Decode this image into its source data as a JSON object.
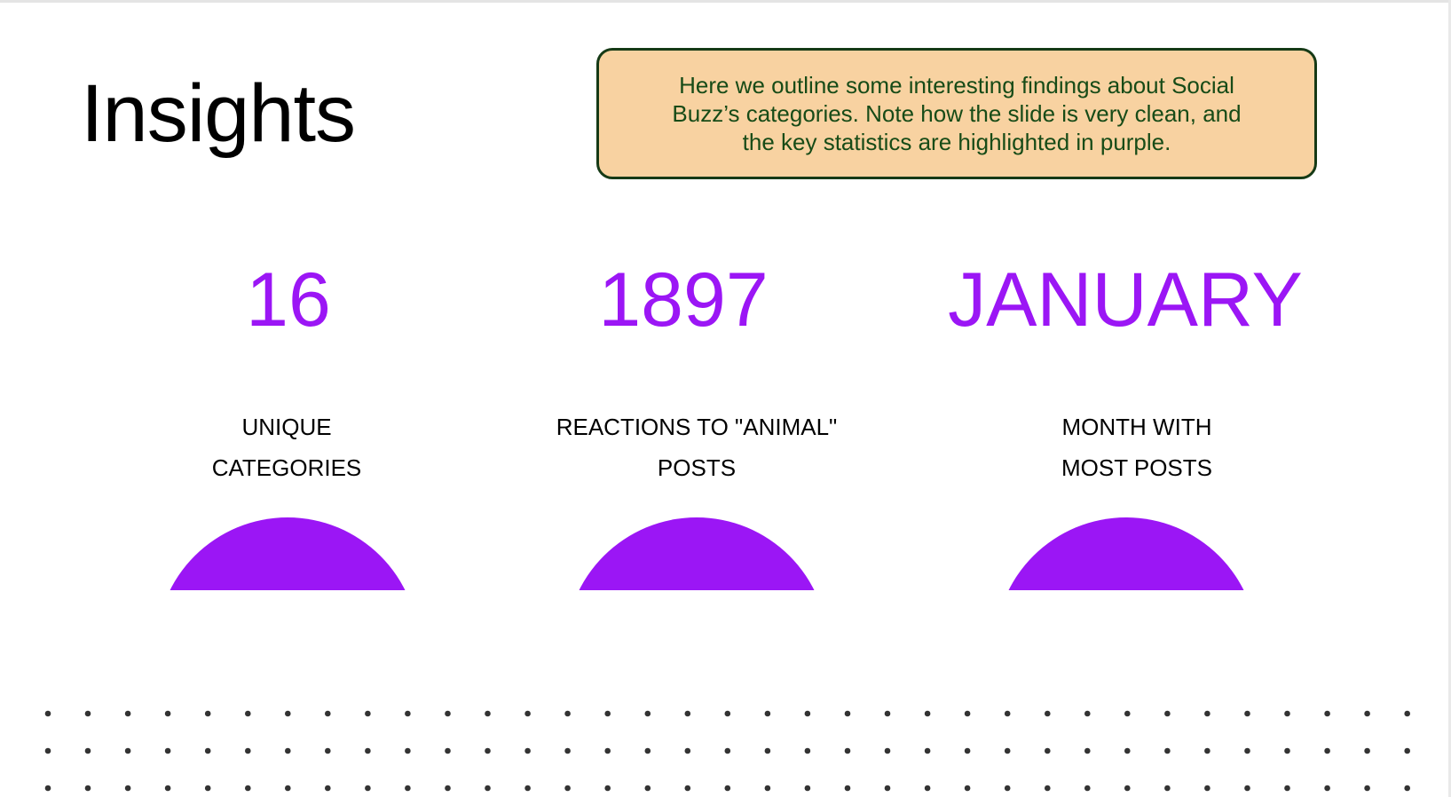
{
  "slide": {
    "title": "Insights",
    "note": "Here we outline some interesting findings about Social Buzz’s categories. Note how the slide is very clean, and the key statistics are highlighted in purple."
  },
  "stats": [
    {
      "value": "16",
      "label_lines": [
        "UNIQUE",
        "CATEGORIES"
      ]
    },
    {
      "value": "1897",
      "label_lines": [
        "REACTIONS TO \"ANIMAL\"",
        "POSTS"
      ]
    },
    {
      "value": "JANUARY",
      "label_lines": [
        "MONTH WITH",
        "MOST POSTS"
      ]
    }
  ],
  "colors": {
    "accent": "#9b16f5",
    "note_background": "#f8d2a1",
    "note_border": "#163a16",
    "note_text": "#174b17",
    "dots": "#333333"
  },
  "decorations": {
    "dot_pattern": "dot-grid"
  }
}
